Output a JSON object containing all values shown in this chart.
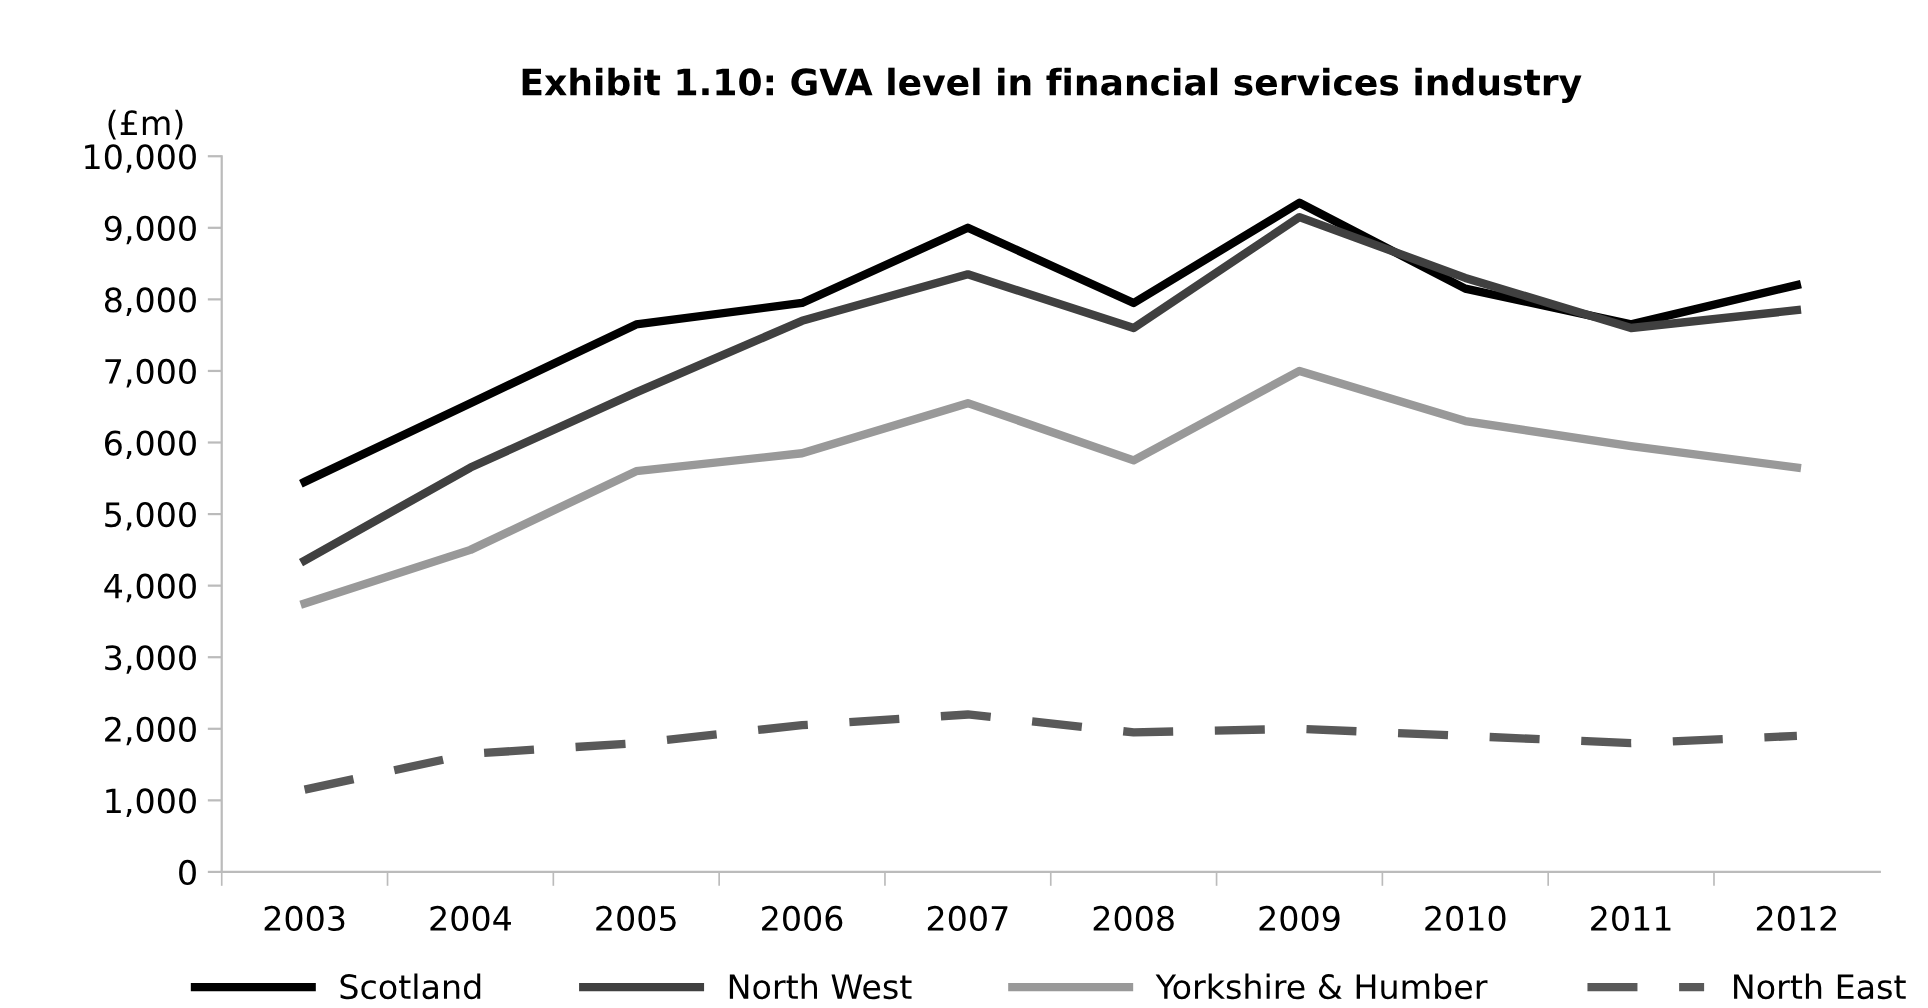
{
  "chart_data": {
    "type": "line",
    "title": "Exhibit 1.10: GVA level in financial services industry",
    "ylabel": "(£m)",
    "categories": [
      "2003",
      "2004",
      "2005",
      "2006",
      "2007",
      "2008",
      "2009",
      "2010",
      "2011",
      "2012"
    ],
    "series": [
      {
        "name": "Scotland",
        "color": "#000000",
        "line_style": "solid",
        "values": [
          5450,
          6550,
          7650,
          7950,
          9000,
          7950,
          9350,
          8150,
          7650,
          8200
        ]
      },
      {
        "name": "North West",
        "color": "#404040",
        "line_style": "solid",
        "values": [
          4350,
          5650,
          6700,
          7700,
          8350,
          7600,
          9150,
          8300,
          7600,
          7850
        ]
      },
      {
        "name": "Yorkshire & Humber",
        "color": "#999999",
        "line_style": "solid",
        "values": [
          3750,
          4500,
          5600,
          5850,
          6550,
          5750,
          7000,
          6300,
          5950,
          5650
        ]
      },
      {
        "name": "North East",
        "color": "#595959",
        "line_style": "dashed",
        "values": [
          1150,
          1650,
          1800,
          2050,
          2200,
          1950,
          2000,
          1900,
          1800,
          1900
        ]
      }
    ],
    "ylim": [
      0,
      10000
    ],
    "yticks": [
      {
        "value": 0,
        "label": "0"
      },
      {
        "value": 1000,
        "label": "1,000"
      },
      {
        "value": 2000,
        "label": "2,000"
      },
      {
        "value": 3000,
        "label": "3,000"
      },
      {
        "value": 4000,
        "label": "4,000"
      },
      {
        "value": 5000,
        "label": "5,000"
      },
      {
        "value": 6000,
        "label": "6,000"
      },
      {
        "value": 7000,
        "label": "7,000"
      },
      {
        "value": 8000,
        "label": "8,000"
      },
      {
        "value": 9000,
        "label": "9,000"
      },
      {
        "value": 10000,
        "label": "10,000"
      }
    ],
    "grid": false,
    "legend": "bottom",
    "marker": "none"
  }
}
